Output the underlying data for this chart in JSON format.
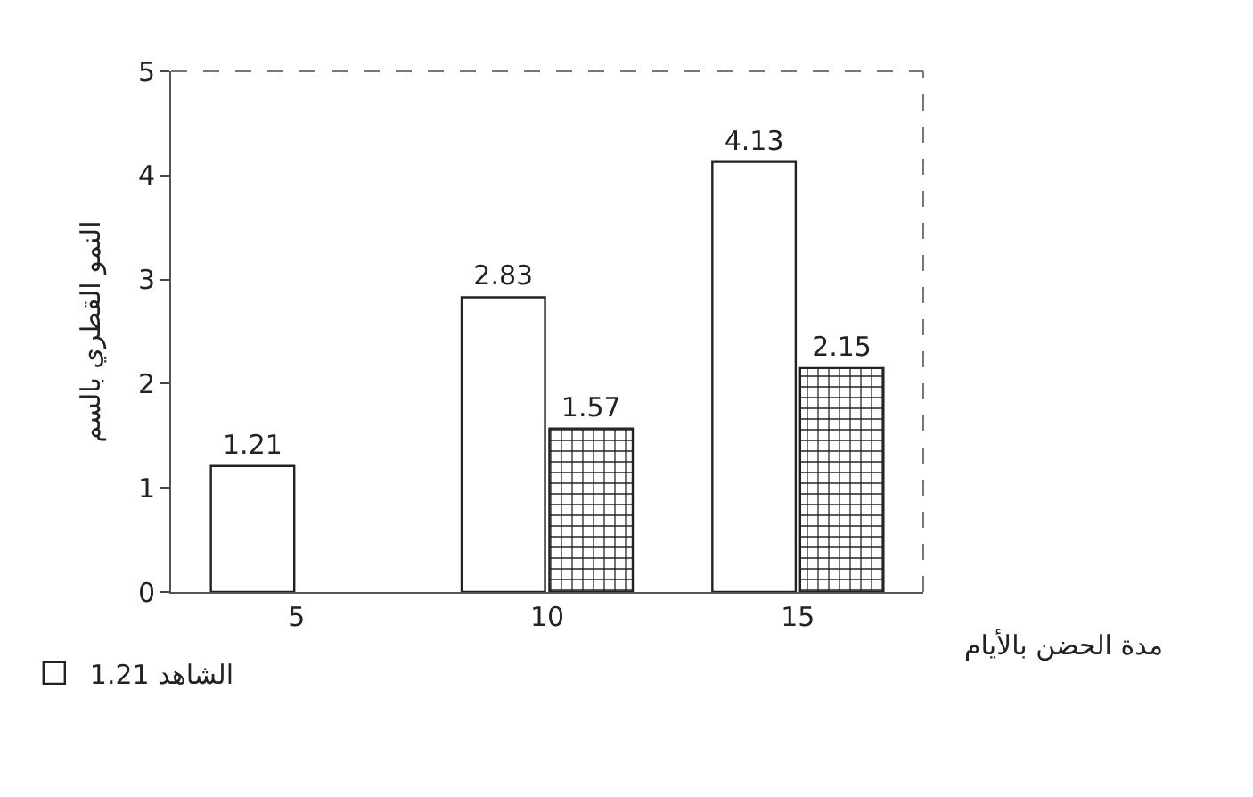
{
  "chart_data": {
    "type": "bar",
    "xlabel": "مدة الحضن بالأيام",
    "ylabel": "النمو القطري بالسم",
    "categories": [
      "5",
      "10",
      "15"
    ],
    "series": [
      {
        "name": "الشاهد 1.21",
        "color": "#ffffff",
        "values": [
          1.21,
          2.83,
          4.13
        ]
      },
      {
        "color": "#222222",
        "values": [
          null,
          1.57,
          2.15
        ]
      }
    ],
    "ylim": [
      0,
      5
    ],
    "yticks": [
      0,
      1,
      2,
      3,
      4,
      5
    ],
    "grid": false,
    "legend": "bottom left",
    "data_labels": true
  }
}
